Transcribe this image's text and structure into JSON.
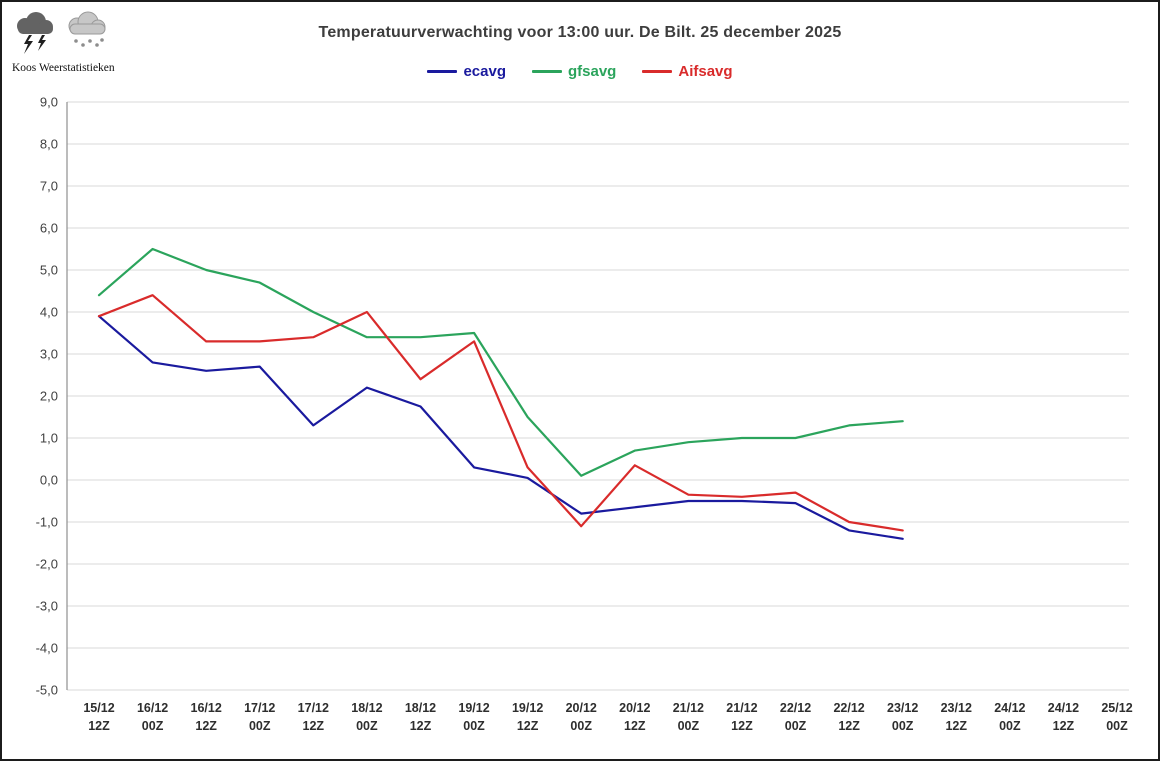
{
  "header": {
    "title": "Temperatuurverwachting voor 13:00 uur. De Bilt. 25 december 2025",
    "logo_text": "Koos Weerstatistieken"
  },
  "legend": [
    {
      "label": "ecavg",
      "color": "#1a1a9e"
    },
    {
      "label": "gfsavg",
      "color": "#2ba45c"
    },
    {
      "label": "Aifsavg",
      "color": "#d92b2b"
    }
  ],
  "chart_data": {
    "type": "line",
    "title": "Temperatuurverwachting voor 13:00 uur. De Bilt. 25 december 2025",
    "xlabel": "",
    "ylabel": "",
    "ylim": [
      -5,
      9
    ],
    "ytick_step": 1,
    "decimal_separator": "comma",
    "grid": true,
    "legend_position": "top",
    "categories": [
      {
        "d": "15/12",
        "z": "12Z"
      },
      {
        "d": "16/12",
        "z": "00Z"
      },
      {
        "d": "16/12",
        "z": "12Z"
      },
      {
        "d": "17/12",
        "z": "00Z"
      },
      {
        "d": "17/12",
        "z": "12Z"
      },
      {
        "d": "18/12",
        "z": "00Z"
      },
      {
        "d": "18/12",
        "z": "12Z"
      },
      {
        "d": "19/12",
        "z": "00Z"
      },
      {
        "d": "19/12",
        "z": "12Z"
      },
      {
        "d": "20/12",
        "z": "00Z"
      },
      {
        "d": "20/12",
        "z": "12Z"
      },
      {
        "d": "21/12",
        "z": "00Z"
      },
      {
        "d": "21/12",
        "z": "12Z"
      },
      {
        "d": "22/12",
        "z": "00Z"
      },
      {
        "d": "22/12",
        "z": "12Z"
      },
      {
        "d": "23/12",
        "z": "00Z"
      },
      {
        "d": "23/12",
        "z": "12Z"
      },
      {
        "d": "24/12",
        "z": "00Z"
      },
      {
        "d": "24/12",
        "z": "12Z"
      },
      {
        "d": "25/12",
        "z": "00Z"
      }
    ],
    "series": [
      {
        "name": "ecavg",
        "color": "#1a1a9e",
        "values": [
          3.9,
          2.8,
          2.6,
          2.7,
          1.3,
          2.2,
          1.75,
          0.3,
          0.05,
          -0.8,
          -0.65,
          -0.5,
          -0.5,
          -0.55,
          -1.2,
          -1.4,
          null,
          null,
          null,
          null
        ]
      },
      {
        "name": "gfsavg",
        "color": "#2ba45c",
        "values": [
          4.4,
          5.5,
          5.0,
          4.7,
          4.0,
          3.4,
          3.4,
          3.5,
          1.5,
          0.1,
          0.7,
          0.9,
          1.0,
          1.0,
          1.3,
          1.4,
          null,
          null,
          null,
          null
        ]
      },
      {
        "name": "Aifsavg",
        "color": "#d92b2b",
        "values": [
          3.9,
          4.4,
          3.3,
          3.3,
          3.4,
          4.0,
          2.4,
          3.3,
          0.3,
          -1.1,
          0.35,
          -0.35,
          -0.4,
          -0.3,
          -1.0,
          -1.2,
          null,
          null,
          null,
          null
        ]
      }
    ]
  }
}
